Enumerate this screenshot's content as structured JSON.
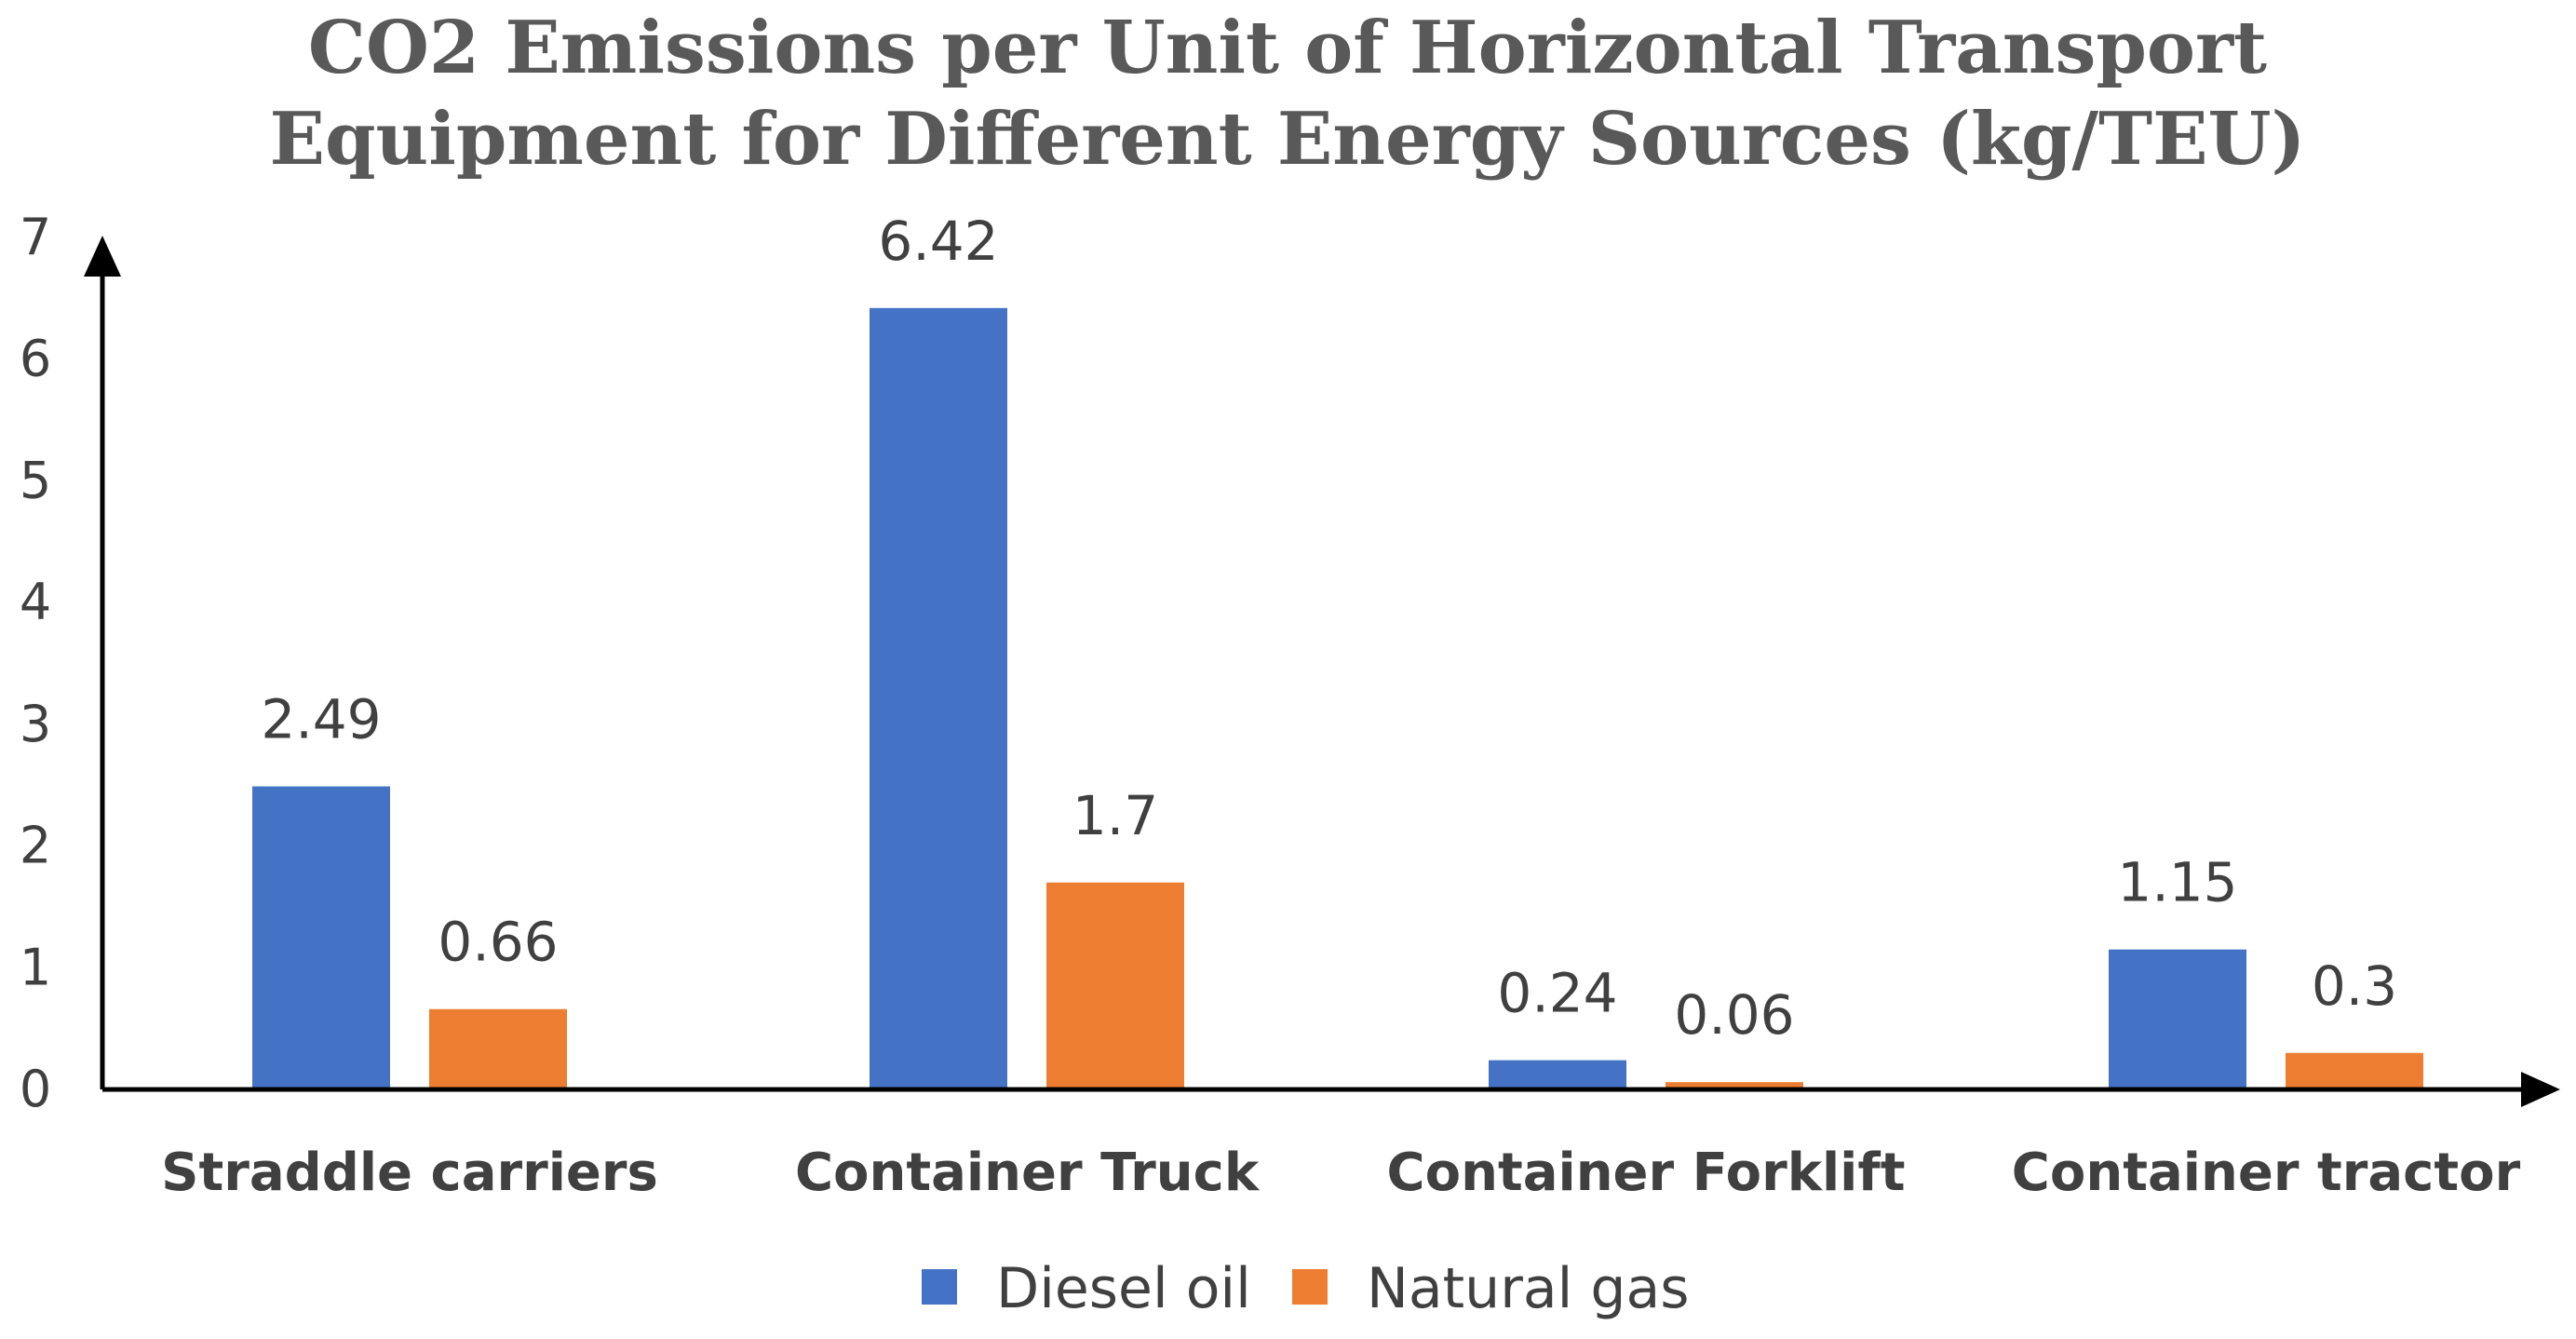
{
  "chart_data": {
    "type": "bar",
    "title_lines": [
      "CO2 Emissions per Unit of Horizontal Transport",
      "Equipment for Different Energy Sources (kg/TEU)"
    ],
    "categories": [
      "Straddle carriers",
      "Container Truck",
      "Container Forklift",
      "Container tractor"
    ],
    "series": [
      {
        "name": "Diesel oil",
        "color": "#4472C4",
        "values": [
          2.49,
          6.42,
          0.24,
          1.15
        ],
        "labels": [
          "2.49",
          "6.42",
          "0.24",
          "1.15"
        ]
      },
      {
        "name": "Natural gas",
        "color": "#ED7D31",
        "values": [
          0.66,
          1.7,
          0.06,
          0.3
        ],
        "labels": [
          "0.66",
          "1.7",
          "0.06",
          "0.3"
        ]
      }
    ],
    "ylim": [
      0,
      7
    ],
    "yticks": [
      "0",
      "1",
      "2",
      "3",
      "4",
      "5",
      "6",
      "7"
    ],
    "xlabel": "",
    "ylabel": "",
    "grid": false,
    "legend": "bottom",
    "axis_color": "#000000"
  }
}
